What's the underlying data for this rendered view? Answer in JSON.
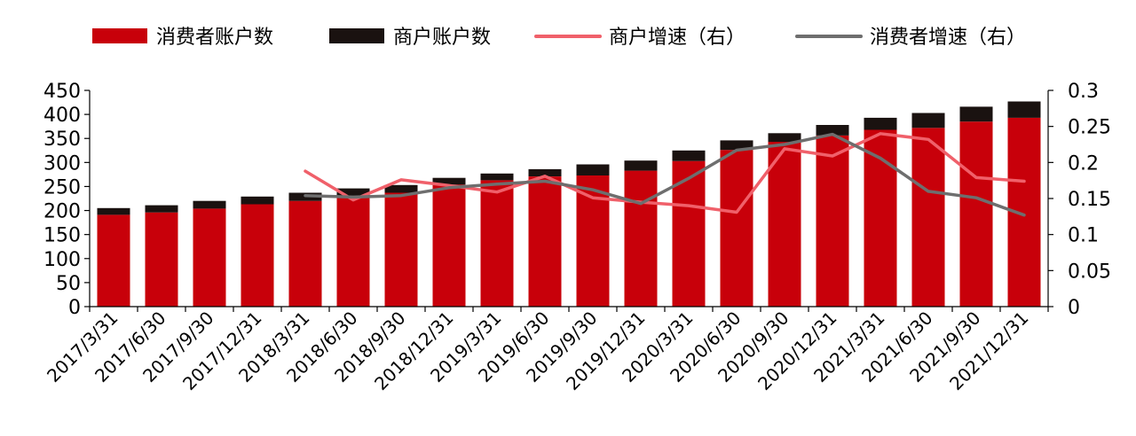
{
  "chart_data": {
    "type": "bar",
    "categories": [
      "2017/3/31",
      "2017/6/30",
      "2017/9/30",
      "2017/12/31",
      "2018/3/31",
      "2018/6/30",
      "2018/9/30",
      "2018/12/31",
      "2019/3/31",
      "2019/6/30",
      "2019/9/30",
      "2019/12/31",
      "2020/3/31",
      "2020/6/30",
      "2020/9/30",
      "2020/12/31",
      "2021/3/31",
      "2021/6/30",
      "2021/9/30",
      "2021/12/31"
    ],
    "series": [
      {
        "name": "消费者账户数",
        "kind": "bar",
        "axis": "left",
        "color": "#c8000a",
        "values": [
          191,
          196,
          204,
          213,
          220,
          230,
          237,
          254,
          263,
          271,
          273,
          283,
          303,
          326,
          343,
          356,
          368,
          372,
          385,
          393
        ]
      },
      {
        "name": "商户账户数",
        "kind": "bar",
        "axis": "left",
        "color": "#1a1210",
        "values": [
          14,
          15,
          16,
          16,
          17,
          16,
          16,
          14,
          14,
          15,
          23,
          21,
          22,
          20,
          18,
          22,
          25,
          31,
          31,
          34
        ]
      },
      {
        "name": "商户增速（右）",
        "kind": "line",
        "axis": "right",
        "color": "#f0606a",
        "values": [
          null,
          null,
          null,
          null,
          0.188,
          0.148,
          0.176,
          0.168,
          0.159,
          0.181,
          0.151,
          0.145,
          0.14,
          0.131,
          0.219,
          0.209,
          0.24,
          0.232,
          0.179,
          0.174
        ]
      },
      {
        "name": "消费者增速（右）",
        "kind": "line",
        "axis": "right",
        "color": "#6e6e6e",
        "values": [
          null,
          null,
          null,
          null,
          0.154,
          0.152,
          0.154,
          0.165,
          0.17,
          0.174,
          0.162,
          0.143,
          0.178,
          0.217,
          0.225,
          0.239,
          0.206,
          0.16,
          0.151,
          0.127
        ]
      }
    ],
    "left_axis": {
      "ylim": [
        0,
        450
      ],
      "ticks": [
        "0",
        "50",
        "100",
        "150",
        "200",
        "250",
        "300",
        "350",
        "400",
        "450"
      ]
    },
    "right_axis": {
      "ylim": [
        0,
        0.3
      ],
      "ticks": [
        "0",
        "0.05",
        "0.1",
        "0.15",
        "0.2",
        "0.25",
        "0.3"
      ]
    },
    "legend_position": "top",
    "grid": false
  }
}
